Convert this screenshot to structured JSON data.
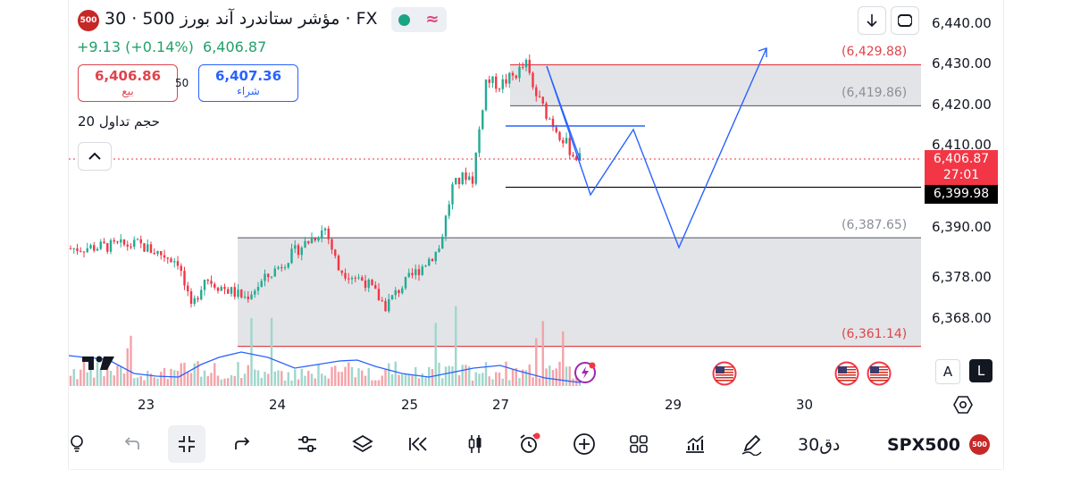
{
  "header": {
    "symbol_badge": "500",
    "title": "مؤشر ستاندرد آند بورز 500 · 30 · FX",
    "change_text": "+9.13 (+0.14%)",
    "last_price": "6,406.87"
  },
  "trade": {
    "sell_price": "6,406.86",
    "sell_label": "بيع",
    "spread": "50",
    "buy_price": "6,407.36",
    "buy_label": "شراء"
  },
  "volume_label": "حجم تداول 20",
  "price_axis": [
    "6,440.00",
    "6,430.00",
    "6,420.00",
    "6,410.00",
    "6,390.00",
    "6,378.00",
    "6,368.00"
  ],
  "levels": {
    "upper_top": "(6,429.88)",
    "upper_bottom": "(6,419.86)",
    "lower_top": "(6,387.65)",
    "lower_bottom": "(6,361.14)"
  },
  "current_price_tag": {
    "price": "6,406.87",
    "countdown": "27:01",
    "color": "#f23645"
  },
  "horizontal_line_tag": {
    "price": "6,399.98"
  },
  "time_axis": [
    "23",
    "24",
    "25",
    "27",
    "29",
    "30"
  ],
  "scale_buttons": {
    "auto": "A",
    "log": "L"
  },
  "toolbar": {
    "items": [
      {
        "icon": "lightbulb-icon"
      },
      {
        "icon": "undo-icon"
      },
      {
        "icon": "collapse-icon"
      },
      {
        "icon": "redo-icon"
      },
      {
        "icon": "indicators-icon"
      },
      {
        "icon": "layers-icon"
      },
      {
        "icon": "replay-icon"
      },
      {
        "icon": "candles-icon"
      },
      {
        "icon": "alarm-icon"
      },
      {
        "icon": "add-icon"
      },
      {
        "icon": "grid-icon"
      },
      {
        "icon": "chart-line-icon"
      },
      {
        "icon": "draw-icon"
      }
    ],
    "interval": "30دق",
    "symbol": "SPX500",
    "symbol_badge": "500"
  },
  "colors": {
    "up": "#22ab94",
    "down": "#f23645",
    "accent": "#2962ff",
    "zone": "#e3e4e7"
  },
  "chart_data": {
    "type": "candlestick",
    "ylim": [
      6355,
      6443
    ],
    "ticks": [
      6440,
      6430,
      6420,
      6410,
      6390,
      6378,
      6368
    ],
    "zones": [
      {
        "top": 6429.88,
        "bottom": 6419.86
      },
      {
        "top": 6387.65,
        "bottom": 6361.14
      }
    ],
    "horizontal_line": 6399.98,
    "current_price": 6406.87,
    "sessions": [
      "23",
      "24",
      "25",
      "27",
      "29",
      "30"
    ],
    "price_path": [
      [
        0,
        6385
      ],
      [
        10,
        6386
      ],
      [
        16,
        6382
      ],
      [
        18,
        6370
      ],
      [
        20,
        6378
      ],
      [
        22,
        6376
      ],
      [
        26,
        6373
      ],
      [
        30,
        6379
      ],
      [
        34,
        6385
      ],
      [
        38,
        6390
      ],
      [
        40,
        6380
      ],
      [
        44,
        6377
      ],
      [
        47,
        6371
      ],
      [
        49,
        6375
      ],
      [
        52,
        6380
      ],
      [
        55,
        6385
      ],
      [
        57,
        6400
      ],
      [
        59,
        6403
      ],
      [
        60,
        6402
      ],
      [
        62,
        6426
      ],
      [
        64,
        6425
      ],
      [
        66,
        6427
      ],
      [
        68,
        6430
      ],
      [
        69,
        6424
      ],
      [
        71,
        6418
      ],
      [
        73,
        6413
      ],
      [
        75,
        6408
      ],
      [
        76,
        6407
      ]
    ],
    "projection_1": [
      [
        6412.9,
        6429.9
      ],
      [
        6413.2,
        6401.5
      ],
      [
        6414.0,
        6413.9
      ],
      [
        6414.8,
        6385.7
      ],
      [
        6415.6,
        6432.9
      ]
    ]
  }
}
